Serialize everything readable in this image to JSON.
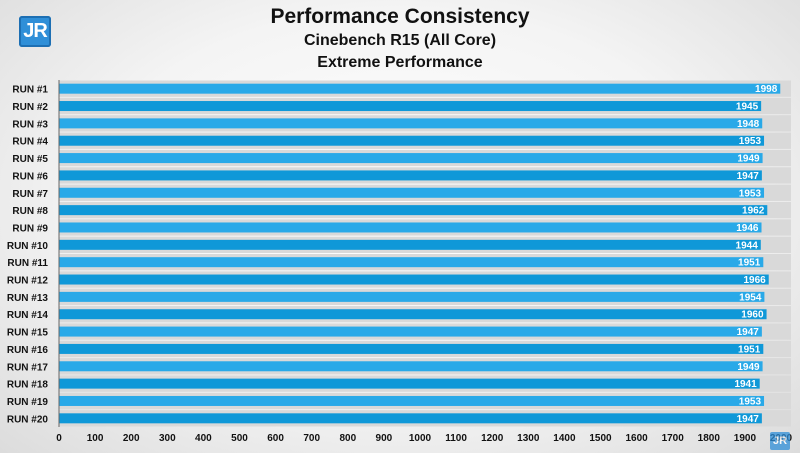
{
  "header": {
    "logo_text": "JR",
    "title": "Performance Consistency",
    "subtitle1": "Cinebench R15 (All Core)",
    "subtitle2": "Extreme Performance"
  },
  "colors": {
    "bar": "#29a9e8",
    "bar_alt": "#0f98d8",
    "row_band": "#d9d9d9",
    "label_text": "#ffffff",
    "axis_text": "#111111"
  },
  "chart_data": {
    "type": "bar",
    "orientation": "horizontal",
    "title": "Performance Consistency",
    "subtitle": "Cinebench R15 (All Core) / Extreme Performance",
    "xlabel": "",
    "ylabel": "",
    "categories": [
      "RUN #1",
      "RUN #2",
      "RUN #3",
      "RUN #4",
      "RUN #5",
      "RUN #6",
      "RUN #7",
      "RUN #8",
      "RUN #9",
      "RUN #10",
      "RUN #11",
      "RUN #12",
      "RUN #13",
      "RUN #14",
      "RUN #15",
      "RUN #16",
      "RUN #17",
      "RUN #18",
      "RUN #19",
      "RUN #20"
    ],
    "values": [
      1998,
      1945,
      1948,
      1953,
      1949,
      1947,
      1953,
      1962,
      1946,
      1944,
      1951,
      1966,
      1954,
      1960,
      1947,
      1951,
      1949,
      1941,
      1953,
      1947
    ],
    "xlim": [
      0,
      2000
    ],
    "xticks": [
      "0",
      "100",
      "200",
      "300",
      "400",
      "500",
      "600",
      "700",
      "800",
      "900",
      "1000",
      "1100",
      "1200",
      "1300",
      "1400",
      "1500",
      "1600",
      "1700",
      "1800",
      "1900",
      "2000"
    ],
    "data_labels": true,
    "grid": false,
    "legend": "none"
  }
}
